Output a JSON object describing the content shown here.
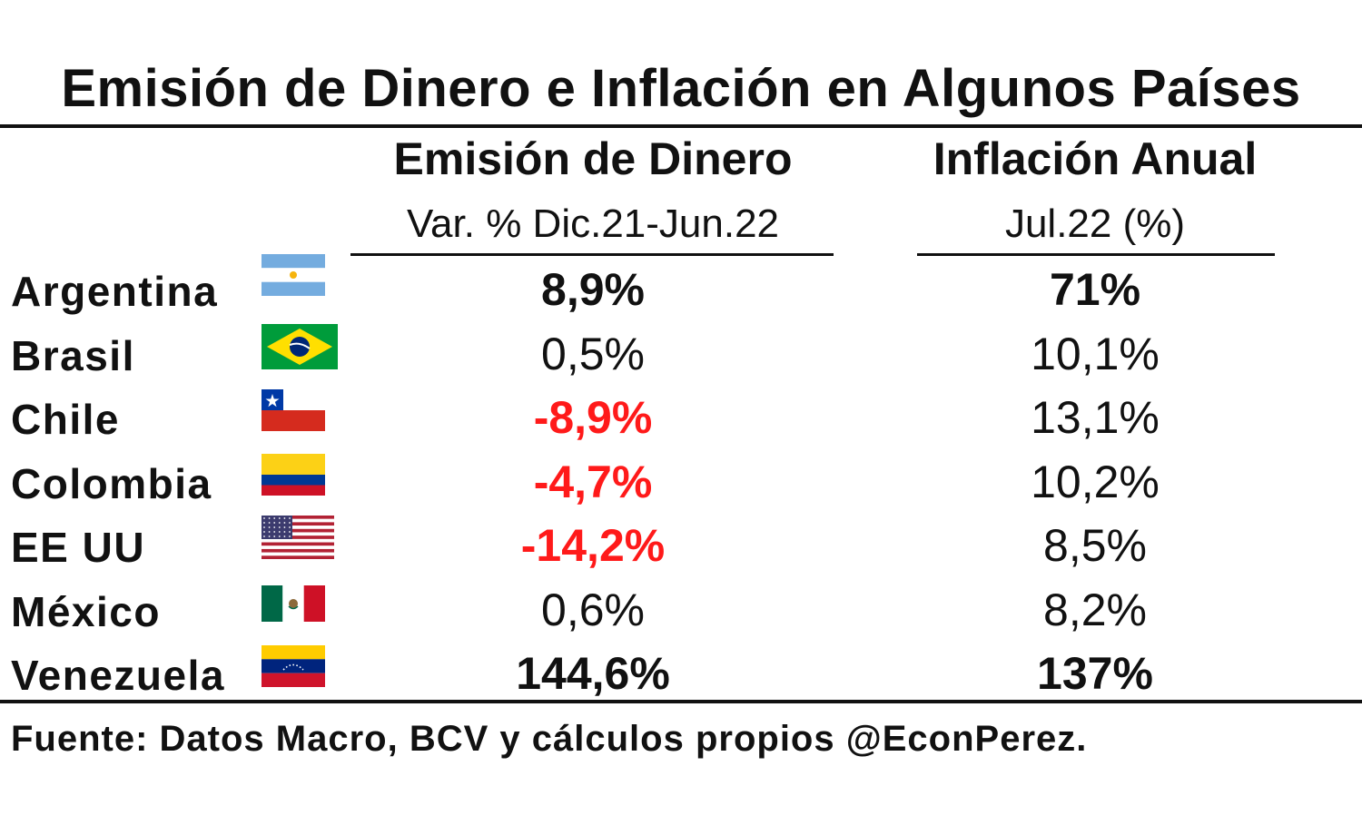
{
  "chart_data": {
    "type": "table",
    "title": "Emisión de Dinero e Inflación en Algunos Países",
    "columns": [
      {
        "header": "Emisión de Dinero",
        "subheader": "Var. % Dic.21-Jun.22"
      },
      {
        "header": "Inflación Anual",
        "subheader": "Jul.22 (%)"
      }
    ],
    "rows": [
      {
        "country": "Argentina",
        "flag": "argentina-flag-icon",
        "emision": "8,9%",
        "inflacion": "71%",
        "emision_style": "bold",
        "inflacion_style": "bold"
      },
      {
        "country": "Brasil",
        "flag": "brazil-flag-icon",
        "emision": "0,5%",
        "inflacion": "10,1%",
        "emision_style": "normal",
        "inflacion_style": "normal"
      },
      {
        "country": "Chile",
        "flag": "chile-flag-icon",
        "emision": "-8,9%",
        "inflacion": "13,1%",
        "emision_style": "negative",
        "inflacion_style": "normal"
      },
      {
        "country": "Colombia",
        "flag": "colombia-flag-icon",
        "emision": "-4,7%",
        "inflacion": "10,2%",
        "emision_style": "negative",
        "inflacion_style": "normal"
      },
      {
        "country": "EE UU",
        "flag": "usa-flag-icon",
        "emision": "-14,2%",
        "inflacion": "8,5%",
        "emision_style": "negative",
        "inflacion_style": "normal"
      },
      {
        "country": "México",
        "flag": "mexico-flag-icon",
        "emision": "0,6%",
        "inflacion": "8,2%",
        "emision_style": "normal",
        "inflacion_style": "normal"
      },
      {
        "country": "Venezuela",
        "flag": "venezuela-flag-icon",
        "emision": "144,6%",
        "inflacion": "137%",
        "emision_style": "bold",
        "inflacion_style": "bold"
      }
    ],
    "source": "Fuente: Datos Macro, BCV y cálculos propios @EconPerez.",
    "colors": {
      "text": "#111111",
      "negative": "#ff1a1a",
      "background": "#ffffff"
    }
  }
}
